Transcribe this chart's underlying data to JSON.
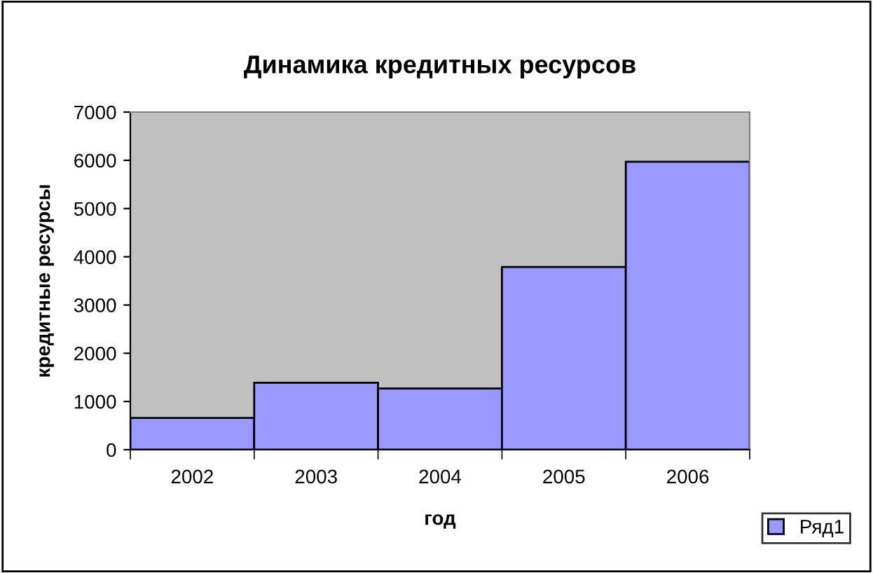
{
  "chart_data": {
    "type": "bar",
    "title": "Динамика кредитных ресурсов",
    "xlabel": "год",
    "ylabel": "кредитные ресурсы",
    "categories": [
      "2002",
      "2003",
      "2004",
      "2005",
      "2006"
    ],
    "series": [
      {
        "name": "Ряд1",
        "color": "#9999ff",
        "values": [
          660,
          1390,
          1270,
          3790,
          5970
        ]
      }
    ],
    "ylim": [
      0,
      7000
    ],
    "yticks": [
      0,
      1000,
      2000,
      3000,
      4000,
      5000,
      6000,
      7000
    ],
    "grid": false,
    "legend": "bottom right"
  }
}
